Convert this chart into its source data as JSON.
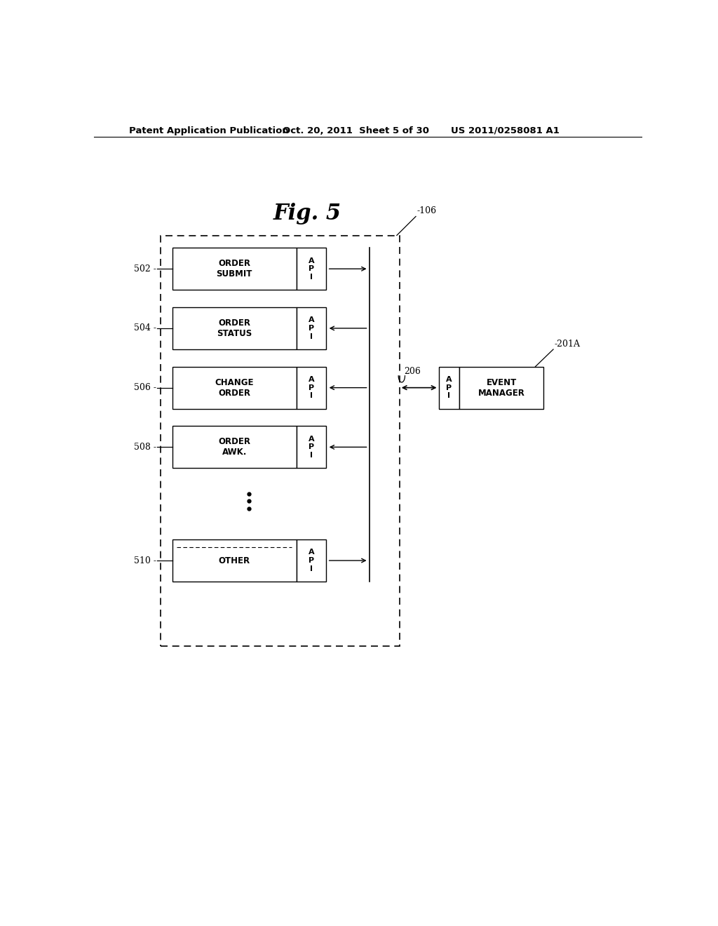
{
  "fig_title": "Fig. 5",
  "header_left": "Patent Application Publication",
  "header_mid": "Oct. 20, 2011  Sheet 5 of 30",
  "header_right": "US 2011/0258081 A1",
  "bg_color": "#ffffff",
  "text_color": "#000000",
  "boxes": [
    {
      "label": "ORDER\nSUBMIT",
      "ref": "502",
      "row": 0,
      "arrow_dir": "right"
    },
    {
      "label": "ORDER\nSTATUS",
      "ref": "504",
      "row": 1,
      "arrow_dir": "left"
    },
    {
      "label": "CHANGE\nORDER",
      "ref": "506",
      "row": 2,
      "arrow_dir": "left"
    },
    {
      "label": "ORDER\nAWK.",
      "ref": "508",
      "row": 3,
      "arrow_dir": "left"
    },
    {
      "label": "OTHER",
      "ref": "510",
      "row": 5,
      "arrow_dir": "right"
    }
  ],
  "outer_box_ref": "106",
  "event_manager_label": "EVENT\nMANAGER",
  "event_manager_ref": "201A",
  "bus_label": "206",
  "dots_row": 4
}
